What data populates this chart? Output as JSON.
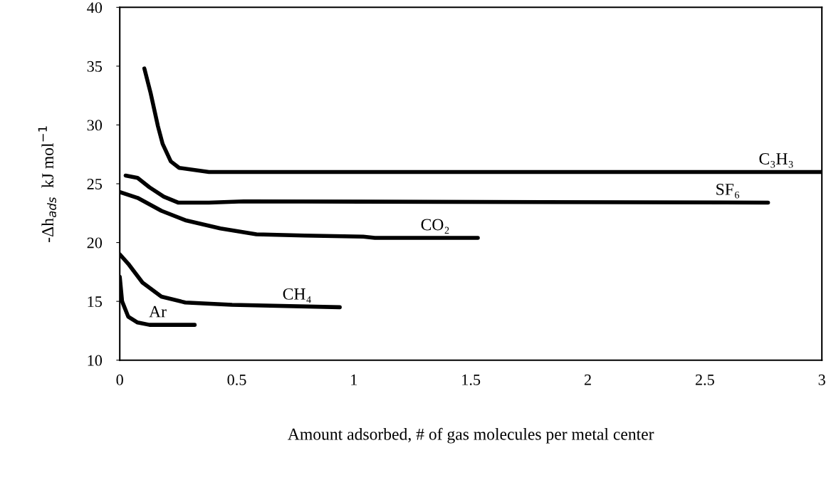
{
  "chart_data": {
    "type": "line",
    "xlabel": "Amount adsorbed, # of gas molecules per metal center",
    "ylabel": "-Δh$_{ads}$  kJ mol$^{−1}$",
    "xlim": [
      0,
      3
    ],
    "xticks": [
      0,
      0.5,
      1,
      1.5,
      2,
      2.5,
      3
    ],
    "ylim": [
      10,
      40
    ],
    "yticks": [
      10,
      15,
      20,
      25,
      30,
      35,
      40
    ],
    "grid": false,
    "legend": false,
    "marker": "none",
    "line_style": "solid",
    "series": [
      {
        "name": "C₃H₃",
        "color": "#000000",
        "x": [
          0.105,
          0.132,
          0.163,
          0.183,
          0.218,
          0.254,
          0.381,
          3.0
        ],
        "values": [
          34.8,
          32.7,
          29.9,
          28.4,
          26.9,
          26.35,
          26.0,
          26.0
        ]
      },
      {
        "name": "SF₆",
        "color": "#000000",
        "x": [
          0.025,
          0.076,
          0.127,
          0.188,
          0.249,
          0.381,
          0.53,
          2.77
        ],
        "values": [
          25.7,
          25.5,
          24.7,
          23.9,
          23.4,
          23.4,
          23.5,
          23.4
        ]
      },
      {
        "name": "CO₂",
        "color": "#000000",
        "x": [
          0,
          0.076,
          0.178,
          0.28,
          0.43,
          0.584,
          0.79,
          1.04,
          1.09,
          1.53
        ],
        "values": [
          24.3,
          23.8,
          22.7,
          21.9,
          21.2,
          20.7,
          20.6,
          20.5,
          20.4,
          20.4
        ]
      },
      {
        "name": "CH₄",
        "color": "#000000",
        "x": [
          0,
          0.036,
          0.097,
          0.178,
          0.28,
          0.48,
          0.94
        ],
        "values": [
          19.0,
          18.2,
          16.6,
          15.4,
          14.9,
          14.7,
          14.5
        ]
      },
      {
        "name": "Ar",
        "color": "#000000",
        "x": [
          0,
          0.01,
          0.036,
          0.076,
          0.127,
          0.32
        ],
        "values": [
          17.1,
          15.0,
          13.7,
          13.2,
          13.0,
          13.0
        ]
      }
    ]
  }
}
